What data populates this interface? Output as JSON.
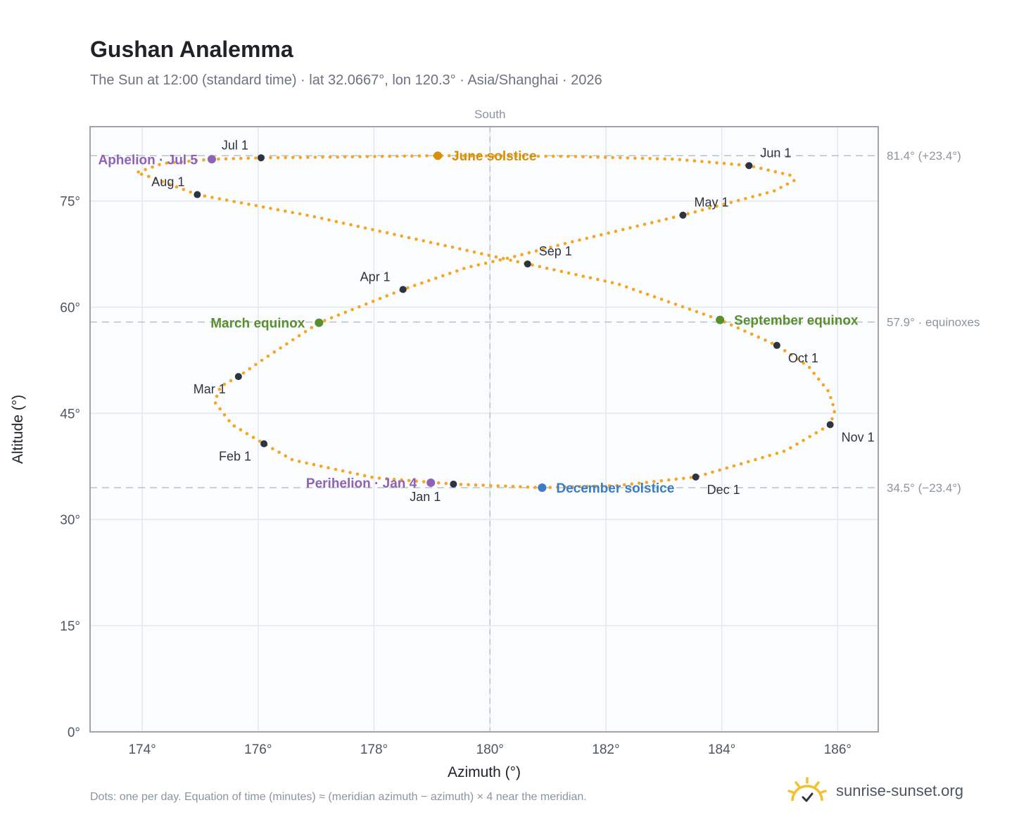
{
  "header": {
    "title": "Gushan Analemma",
    "subtitle": "The Sun at 12:00 (standard time) · lat 32.0667°, lon 120.3° · Asia/Shanghai · 2026"
  },
  "footer": {
    "note": "Dots: one per day. Equation of time (minutes) ≈ (meridian azimuth − azimuth) × 4 near the meridian.",
    "brand": "sunrise-sunset.org"
  },
  "colors": {
    "path": "#f5a623",
    "month_marker": "#2d3440",
    "june": "#d4900a",
    "equinox": "#5a8f2e",
    "december": "#3b7dc4",
    "apsis": "#8e63b5",
    "grid": "#e3e8ee",
    "plot_bg": "#fafcfe",
    "ref_line": "#b8c3cc"
  },
  "chart_data": {
    "type": "scatter",
    "xlabel": "Azimuth (°)",
    "ylabel": "Altitude (°)",
    "xlim": [
      173.1,
      186.7
    ],
    "ylim": [
      0,
      85.5
    ],
    "x_ticks": [
      174,
      176,
      178,
      180,
      182,
      184,
      186
    ],
    "x_tick_labels": [
      "174°",
      "176°",
      "178°",
      "180°",
      "182°",
      "184°",
      "186°"
    ],
    "y_ticks": [
      0,
      15,
      30,
      45,
      60,
      75
    ],
    "y_tick_labels": [
      "0°",
      "15°",
      "30°",
      "45°",
      "60°",
      "75°"
    ],
    "grid": true,
    "meridian": {
      "x": 180,
      "label": "South"
    },
    "reference_lines": [
      {
        "y": 81.4,
        "label": "81.4° (+23.4°)"
      },
      {
        "y": 57.9,
        "label": "57.9° · equinoxes"
      },
      {
        "y": 34.5,
        "label": "34.5° (−23.4°)"
      }
    ],
    "path_points": [
      [
        179.37,
        35.0
      ],
      [
        178.0,
        35.9
      ],
      [
        176.6,
        38.4
      ],
      [
        176.1,
        40.7
      ],
      [
        175.55,
        43.4
      ],
      [
        175.25,
        46.6
      ],
      [
        175.35,
        48.8
      ],
      [
        175.66,
        50.2
      ],
      [
        176.1,
        52.7
      ],
      [
        177.05,
        57.8
      ],
      [
        178.5,
        62.5
      ],
      [
        179.6,
        65.6
      ],
      [
        180.35,
        67.0
      ],
      [
        181.4,
        69.2
      ],
      [
        183.33,
        73.0
      ],
      [
        184.9,
        76.4
      ],
      [
        185.25,
        77.9
      ],
      [
        185.2,
        78.6
      ],
      [
        184.47,
        80.0
      ],
      [
        183.2,
        80.9
      ],
      [
        181.4,
        81.3
      ],
      [
        179.1,
        81.4
      ],
      [
        177.2,
        81.2
      ],
      [
        176.05,
        81.1
      ],
      [
        175.2,
        80.9
      ],
      [
        174.35,
        80.3
      ],
      [
        173.9,
        79.0
      ],
      [
        174.1,
        78.5
      ],
      [
        174.95,
        75.9
      ],
      [
        176.9,
        72.9
      ],
      [
        179.5,
        68.2
      ],
      [
        180.65,
        66.1
      ],
      [
        182.2,
        63.3
      ],
      [
        183.97,
        58.2
      ],
      [
        184.95,
        54.6
      ],
      [
        185.5,
        51.6
      ],
      [
        185.85,
        48.0
      ],
      [
        185.95,
        45.4
      ],
      [
        185.87,
        43.4
      ],
      [
        185.1,
        39.7
      ],
      [
        183.55,
        36.0
      ],
      [
        182.2,
        34.8
      ],
      [
        180.9,
        34.5
      ],
      [
        179.37,
        35.0
      ]
    ],
    "months": [
      {
        "label": "Jan 1",
        "x": 179.37,
        "y": 35.0,
        "pos": "below-left"
      },
      {
        "label": "Feb 1",
        "x": 176.1,
        "y": 40.7,
        "pos": "below-left"
      },
      {
        "label": "Mar 1",
        "x": 175.66,
        "y": 50.2,
        "pos": "below-left"
      },
      {
        "label": "Apr 1",
        "x": 178.5,
        "y": 62.5,
        "pos": "above-left"
      },
      {
        "label": "May 1",
        "x": 183.33,
        "y": 73.0,
        "pos": "above-right"
      },
      {
        "label": "Jun 1",
        "x": 184.47,
        "y": 80.0,
        "pos": "above-right"
      },
      {
        "label": "Jul 1",
        "x": 176.05,
        "y": 81.1,
        "pos": "above-left"
      },
      {
        "label": "Aug 1",
        "x": 174.95,
        "y": 75.9,
        "pos": "above-left"
      },
      {
        "label": "Sep 1",
        "x": 180.65,
        "y": 66.1,
        "pos": "above-right"
      },
      {
        "label": "Oct 1",
        "x": 184.95,
        "y": 54.6,
        "pos": "below-right"
      },
      {
        "label": "Nov 1",
        "x": 185.87,
        "y": 43.4,
        "pos": "below-right"
      },
      {
        "label": "Dec 1",
        "x": 183.55,
        "y": 36.0,
        "pos": "below-right"
      }
    ],
    "events": [
      {
        "label": "June solstice",
        "x": 179.1,
        "y": 81.4,
        "color": "#d4900a",
        "pos": "right"
      },
      {
        "label": "March equinox",
        "x": 177.05,
        "y": 57.8,
        "color": "#5a8f2e",
        "pos": "left"
      },
      {
        "label": "September equinox",
        "x": 183.97,
        "y": 58.2,
        "color": "#5a8f2e",
        "pos": "right"
      },
      {
        "label": "December solstice",
        "x": 180.9,
        "y": 34.5,
        "color": "#3b7dc4",
        "pos": "right"
      },
      {
        "label": "Aphelion · Jul 5",
        "x": 175.2,
        "y": 80.9,
        "color": "#8e63b5",
        "pos": "left"
      },
      {
        "label": "Perihelion · Jan 4",
        "x": 178.98,
        "y": 35.2,
        "color": "#8e63b5",
        "pos": "left"
      }
    ]
  }
}
